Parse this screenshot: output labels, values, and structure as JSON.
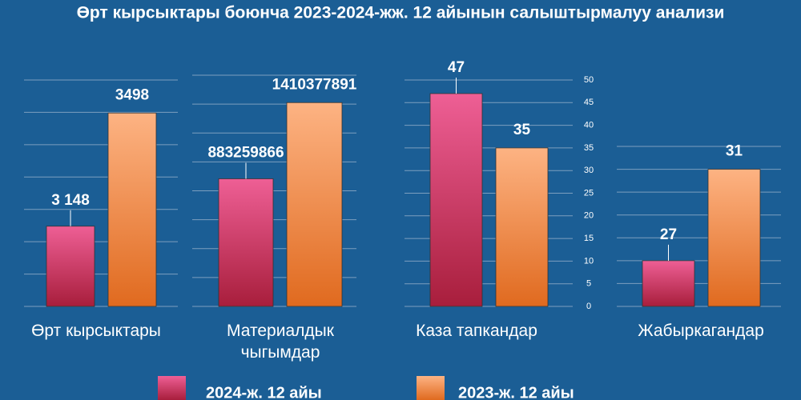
{
  "title": "Өрт кырсыктары боюнча 2023-2024-жж. 12 айынын салыштырмалуу анализи",
  "chart_data": [
    {
      "type": "bar",
      "categories": [
        "Өрт кырсыктары"
      ],
      "series": [
        {
          "name": "2024-ж. 12 айы",
          "color": "#ee5f95",
          "values": [
            3148
          ],
          "value_labels": [
            "3 148"
          ]
        },
        {
          "name": "2023-ж. 12 айы",
          "color": "#fdb383",
          "values": [
            3498
          ]
        }
      ],
      "ylim": [
        2900,
        3600
      ],
      "yticks": [
        2900,
        3000,
        3100,
        3200,
        3300,
        3400,
        3500,
        3600
      ],
      "grid": true,
      "tick_labels": false
    },
    {
      "type": "bar",
      "categories": [
        "Материалдык чыгымдар"
      ],
      "series": [
        {
          "name": "2024-ж. 12 айы",
          "color": "#ee5f95",
          "values": [
            883259866
          ]
        },
        {
          "name": "2023-ж. 12 айы",
          "color": "#fdb383",
          "values": [
            1410377891
          ]
        }
      ],
      "ylim": [
        0,
        1600000000
      ],
      "yticks": [
        0,
        200000000,
        400000000,
        600000000,
        800000000,
        1000000000,
        1200000000,
        1400000000,
        1600000000
      ],
      "grid": true,
      "tick_labels": false
    },
    {
      "type": "bar",
      "categories": [
        "Каза тапкандар"
      ],
      "series": [
        {
          "name": "2024-ж. 12 айы",
          "color": "#ee5f95",
          "values": [
            47
          ]
        },
        {
          "name": "2023-ж. 12 айы",
          "color": "#fdb383",
          "values": [
            35
          ]
        }
      ],
      "ylim": [
        0,
        50
      ],
      "yticks": [
        0,
        5,
        10,
        15,
        20,
        25,
        30,
        35,
        40,
        45,
        50
      ],
      "grid": true,
      "tick_labels": true
    },
    {
      "type": "bar",
      "categories": [
        "Жабыркагандар"
      ],
      "series": [
        {
          "name": "2024-ж. 12 айы",
          "color": "#ee5f95",
          "values": [
            27
          ]
        },
        {
          "name": "2023-ж. 12 айы",
          "color": "#fdb383",
          "values": [
            31
          ]
        }
      ],
      "ylim": [
        25,
        32
      ],
      "yticks": [
        25,
        26,
        27,
        28,
        29,
        30,
        31,
        32
      ],
      "grid": true,
      "tick_labels": false
    }
  ]
}
